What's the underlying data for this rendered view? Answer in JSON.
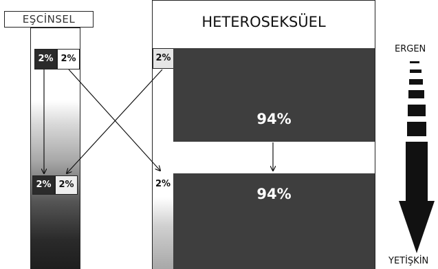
{
  "left": {
    "title": "EŞCİNSEL",
    "top_left_pct": "2%",
    "top_right_pct": "2%",
    "bottom_left_pct": "2%",
    "bottom_right_pct": "2%"
  },
  "right": {
    "title": "HETEROSEKSÜEL",
    "top_small_pct": "2%",
    "top_big_pct": "94%",
    "bottom_small_pct": "2%",
    "bottom_big_pct": "94%"
  },
  "legend": {
    "top_label": "ERGEN",
    "bottom_label": "YETİŞKİN"
  }
}
